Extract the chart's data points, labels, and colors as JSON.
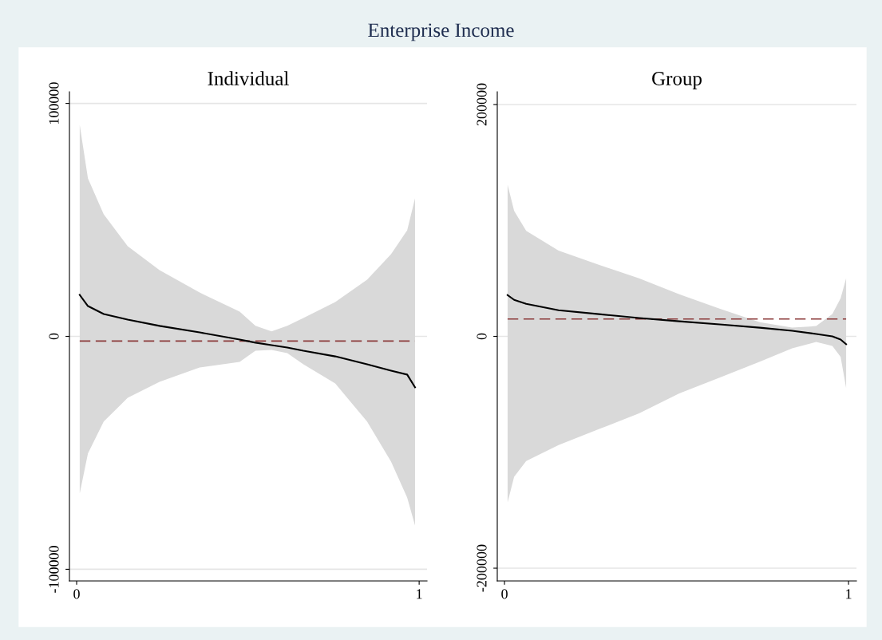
{
  "chart_data": [
    {
      "type": "line",
      "title": "Individual",
      "xlim": [
        -0.021,
        1.023
      ],
      "ylim": [
        -105000,
        105000
      ],
      "xticks": [
        0,
        1
      ],
      "yticks": [
        -100000,
        0,
        100000
      ],
      "grid": "y",
      "x": [
        0.009,
        0.033,
        0.079,
        0.149,
        0.242,
        0.359,
        0.476,
        0.522,
        0.569,
        0.615,
        0.662,
        0.755,
        0.848,
        0.918,
        0.965,
        0.988
      ],
      "series": [
        {
          "color": "#000000",
          "values": [
            17800,
            13000,
            9600,
            7200,
            4500,
            1700,
            -1400,
            -2700,
            -3800,
            -4800,
            -6200,
            -8600,
            -12000,
            -14700,
            -16400,
            -21900
          ],
          "upper": [
            90800,
            67800,
            52400,
            38700,
            28400,
            18800,
            10600,
            4500,
            2100,
            4500,
            7900,
            14700,
            24300,
            35300,
            45500,
            59300
          ],
          "lower": [
            -67500,
            -50300,
            -36600,
            -26400,
            -19500,
            -13400,
            -11000,
            -6200,
            -5800,
            -7200,
            -12000,
            -20200,
            -36600,
            -53800,
            -69200,
            -81200
          ]
        }
      ],
      "ref_lines": [
        {
          "axis": "y",
          "value": -2000,
          "color": "#8b3a3a",
          "line_style": "dashed"
        }
      ],
      "annotations": [
        "Enterprise Income"
      ]
    },
    {
      "type": "line",
      "title": "Group",
      "xlim": [
        -0.021,
        1.023
      ],
      "ylim": [
        -211000,
        211000
      ],
      "xticks": [
        0,
        1
      ],
      "yticks": [
        -200000,
        0,
        200000
      ],
      "grid": "y",
      "x": [
        0.009,
        0.028,
        0.063,
        0.157,
        0.274,
        0.391,
        0.508,
        0.625,
        0.742,
        0.836,
        0.906,
        0.953,
        0.977,
        0.993
      ],
      "series": [
        {
          "color": "#000000",
          "values": [
            35600,
            31500,
            28100,
            22600,
            19200,
            15800,
            13000,
            10300,
            7500,
            4800,
            2100,
            0,
            -2700,
            -6800
          ],
          "upper": [
            130800,
            108200,
            91100,
            74000,
            61700,
            50000,
            36300,
            24000,
            12300,
            7500,
            8900,
            19200,
            32900,
            50000
          ],
          "lower": [
            -143200,
            -121200,
            -107500,
            -93800,
            -80100,
            -66400,
            -49300,
            -35600,
            -21900,
            -10300,
            -4800,
            -8200,
            -17800,
            -44500
          ]
        }
      ],
      "ref_lines": [
        {
          "axis": "y",
          "value": 15000,
          "color": "#8b3a3a",
          "line_style": "dashed"
        }
      ]
    }
  ]
}
